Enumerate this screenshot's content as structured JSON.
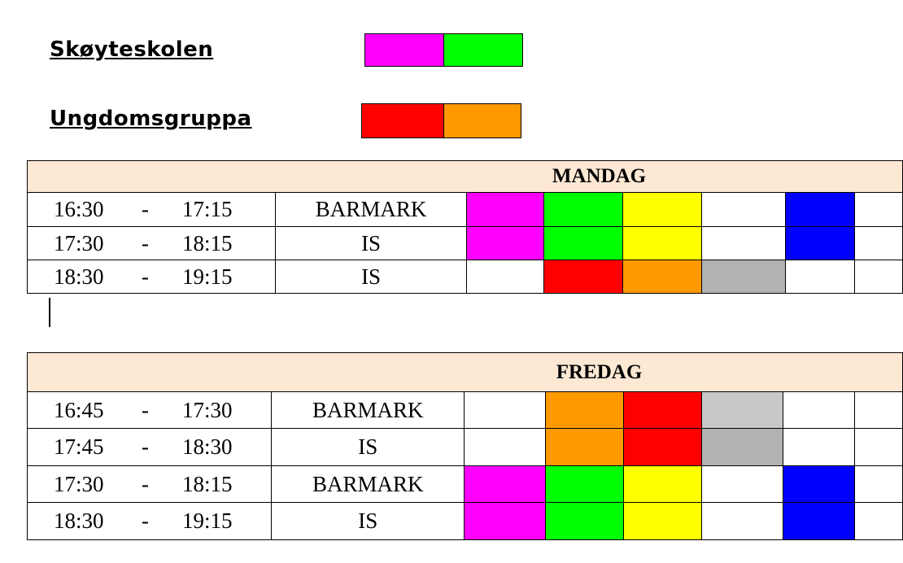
{
  "legend": [
    {
      "label": "Skøyteskolen",
      "colors": [
        "#ff00ff",
        "#00ff00"
      ]
    },
    {
      "label": "Ungdomsgruppa",
      "colors": [
        "#ff0000",
        "#ff9900"
      ]
    }
  ],
  "mandag": {
    "day": "MANDAG",
    "rows": [
      {
        "start": "16:30",
        "sep": "-",
        "end": "17:15",
        "activity": "BARMARK",
        "cells": [
          "#ff00ff",
          "#00ff00",
          "#ffff00",
          "#ffffff",
          "#0000ff",
          "#ffffff"
        ]
      },
      {
        "start": "17:30",
        "sep": "-",
        "end": "18:15",
        "activity": "IS",
        "cells": [
          "#ff00ff",
          "#00ff00",
          "#ffff00",
          "#ffffff",
          "#0000ff",
          "#ffffff"
        ]
      },
      {
        "start": "18:30",
        "sep": "-",
        "end": "19:15",
        "activity": "IS",
        "cells": [
          "#ffffff",
          "#ff0000",
          "#ff9900",
          "#b2b2b2",
          "#ffffff",
          "#ffffff"
        ]
      }
    ]
  },
  "fredag": {
    "day": "FREDAG",
    "rows": [
      {
        "start": "16:45",
        "sep": "-",
        "end": "17:30",
        "activity": "BARMARK",
        "cells": [
          "#ffffff",
          "#ff9900",
          "#ff0000",
          "#c8c8c8",
          "#ffffff",
          "#ffffff"
        ]
      },
      {
        "start": "17:45",
        "sep": "-",
        "end": "18:30",
        "activity": "IS",
        "cells": [
          "#ffffff",
          "#ff9900",
          "#ff0000",
          "#b2b2b2",
          "#ffffff",
          "#ffffff"
        ]
      },
      {
        "start": "17:30",
        "sep": "-",
        "end": "18:15",
        "activity": "BARMARK",
        "cells": [
          "#ff00ff",
          "#00ff00",
          "#ffff00",
          "#ffffff",
          "#0000ff",
          "#ffffff"
        ]
      },
      {
        "start": "18:30",
        "sep": "-",
        "end": "19:15",
        "activity": "IS",
        "cells": [
          "#ff00ff",
          "#00ff00",
          "#ffff00",
          "#ffffff",
          "#0000ff",
          "#ffffff"
        ]
      }
    ]
  }
}
